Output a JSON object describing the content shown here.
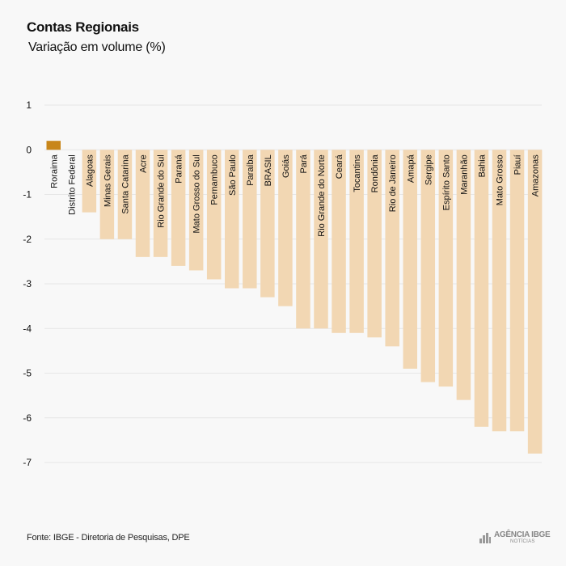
{
  "header": {
    "title": "Contas Regionais",
    "subtitle": "Variação em volume (%)"
  },
  "footer": {
    "source": "Fonte: IBGE - Diretoria de Pesquisas, DPE",
    "brand_name": "AGÊNCIA IBGE",
    "brand_sub": "NOTÍCIAS"
  },
  "colors": {
    "highlight": "#c8861a",
    "bar": "#f2d7b3",
    "grid": "#e6e6e6",
    "background": "#f8f8f8"
  },
  "chart_data": {
    "type": "bar",
    "title": "Contas Regionais",
    "subtitle": "Variação em volume (%)",
    "ylim": [
      -7,
      1
    ],
    "yticks": [
      1,
      0,
      -1,
      -2,
      -3,
      -4,
      -5,
      -6,
      -7
    ],
    "grid": true,
    "legend": "none",
    "categories": [
      "Roraima",
      "Distrito Federal",
      "Alagoas",
      "Minas Gerais",
      "Santa Catarina",
      "Acre",
      "Rio Grande do Sul",
      "Paraná",
      "Mato Grosso do Sul",
      "Pernambuco",
      "São Paulo",
      "Paraíba",
      "BRASIL",
      "Goiás",
      "Pará",
      "Rio Grande do Norte",
      "Ceará",
      "Tocantins",
      "Rondônia",
      "Rio de Janeiro",
      "Amapá",
      "Sergipe",
      "Espírito Santo",
      "Maranhão",
      "Bahia",
      "Mato Grosso",
      "Piauí",
      "Amazonas"
    ],
    "values": [
      0.2,
      0.0,
      -1.4,
      -2.0,
      -2.0,
      -2.4,
      -2.4,
      -2.6,
      -2.7,
      -2.9,
      -3.1,
      -3.1,
      -3.3,
      -3.5,
      -4.0,
      -4.0,
      -4.1,
      -4.1,
      -4.2,
      -4.4,
      -4.9,
      -5.2,
      -5.3,
      -5.6,
      -6.2,
      -6.3,
      -6.3,
      -6.8
    ],
    "highlight_category": "Roraima"
  }
}
